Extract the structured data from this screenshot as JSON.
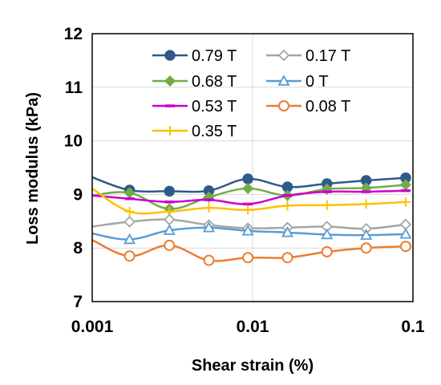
{
  "chart_data": {
    "type": "line",
    "xlabel": "Shear strain (%)",
    "ylabel": "Loss modulus (kPa)",
    "x_scale": "log",
    "xlim": [
      0.001,
      0.1
    ],
    "ylim": [
      7,
      12
    ],
    "x_ticks": [
      "0.001",
      "0.01",
      "0.1"
    ],
    "x_tick_values": [
      0.001,
      0.01,
      0.1
    ],
    "y_ticks": [
      "7",
      "8",
      "9",
      "10",
      "11",
      "12"
    ],
    "y_tick_values": [
      7,
      8,
      9,
      10,
      11,
      12
    ],
    "grid": "major vertical and horizontal",
    "legend_position": "top-inside",
    "series": [
      {
        "name": "0.79 T",
        "color": "#2E5A8A",
        "marker": "circle-filled",
        "x": [
          0.001,
          0.00171,
          0.00303,
          0.00534,
          0.00935,
          0.0165,
          0.0291,
          0.0511,
          0.0901
        ],
        "y": [
          9.32,
          9.08,
          9.06,
          9.07,
          9.29,
          9.14,
          9.2,
          9.26,
          9.31
        ]
      },
      {
        "name": "0.68 T",
        "color": "#70AD47",
        "marker": "diamond-filled",
        "x": [
          0.001,
          0.00171,
          0.00303,
          0.00534,
          0.00935,
          0.0165,
          0.0291,
          0.0511,
          0.0901
        ],
        "y": [
          8.98,
          9.03,
          8.73,
          8.95,
          9.11,
          8.98,
          9.1,
          9.12,
          9.18
        ]
      },
      {
        "name": "0.53 T",
        "color": "#CC00CC",
        "marker": "dash",
        "x": [
          0.001,
          0.00171,
          0.00303,
          0.00534,
          0.00935,
          0.0165,
          0.0291,
          0.0511,
          0.0901
        ],
        "y": [
          8.98,
          8.92,
          8.86,
          8.9,
          8.82,
          8.98,
          9.05,
          9.05,
          9.07
        ]
      },
      {
        "name": "0.35 T",
        "color": "#FFC000",
        "marker": "plus",
        "x": [
          0.001,
          0.00171,
          0.00303,
          0.00534,
          0.00935,
          0.0165,
          0.0291,
          0.0511,
          0.0901
        ],
        "y": [
          9.11,
          8.68,
          8.68,
          8.75,
          8.71,
          8.79,
          8.8,
          8.82,
          8.86
        ]
      },
      {
        "name": "0.17 T",
        "color": "#A5A5A5",
        "marker": "diamond-open",
        "x": [
          0.001,
          0.00171,
          0.00303,
          0.00534,
          0.00935,
          0.0165,
          0.0291,
          0.0511,
          0.0901
        ],
        "y": [
          8.4,
          8.49,
          8.53,
          8.43,
          8.37,
          8.38,
          8.4,
          8.36,
          8.44
        ]
      },
      {
        "name": "0 T",
        "color": "#5B9BD5",
        "marker": "triangle-open",
        "x": [
          0.001,
          0.00171,
          0.00303,
          0.00534,
          0.00935,
          0.0165,
          0.0291,
          0.0511,
          0.0901
        ],
        "y": [
          8.27,
          8.16,
          8.33,
          8.38,
          8.32,
          8.29,
          8.25,
          8.24,
          8.26
        ]
      },
      {
        "name": "0.08 T",
        "color": "#ED7D31",
        "marker": "circle-open",
        "x": [
          0.001,
          0.00171,
          0.00303,
          0.00534,
          0.00935,
          0.0165,
          0.0291,
          0.0511,
          0.0901
        ],
        "y": [
          8.15,
          7.85,
          8.05,
          7.77,
          7.82,
          7.82,
          7.93,
          8.0,
          8.03
        ]
      }
    ],
    "legend_order": [
      "0.79 T",
      "0.17 T",
      "0.68 T",
      "0 T",
      "0.53 T",
      "0.08 T",
      "0.35 T"
    ]
  }
}
